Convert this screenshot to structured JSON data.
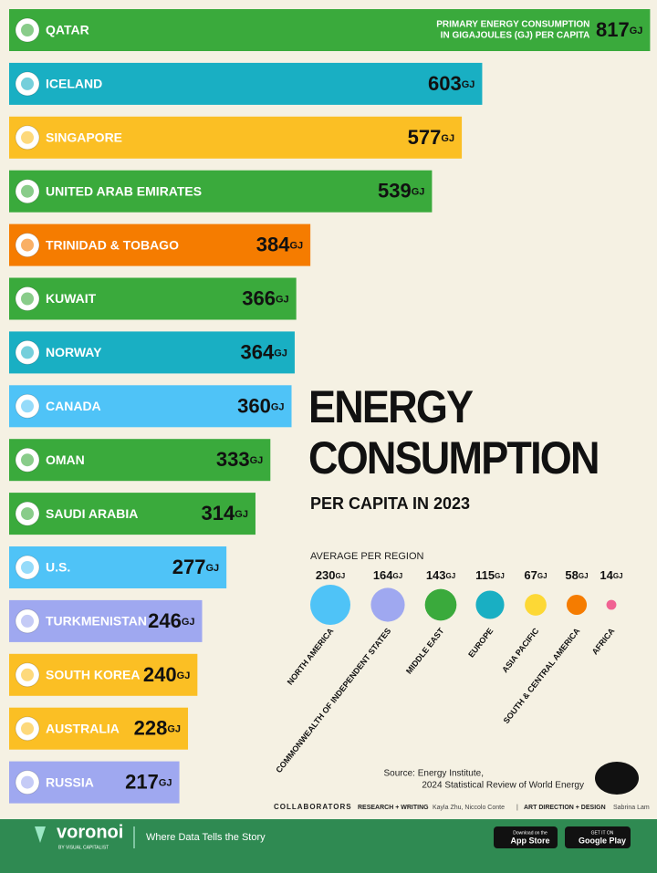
{
  "chart_data": [
    {
      "type": "bar",
      "orientation": "horizontal",
      "title": "ENERGY CONSUMPTION",
      "subtitle": "PER CAPITA IN 2023",
      "note": [
        "PRIMARY ENERGY CONSUMPTION",
        "IN GIGAJOULES (GJ) PER CAPITA"
      ],
      "unit": "GJ",
      "categories": [
        "QATAR",
        "ICELAND",
        "SINGAPORE",
        "UNITED ARAB EMIRATES",
        "TRINIDAD & TOBAGO",
        "KUWAIT",
        "NORWAY",
        "CANADA",
        "OMAN",
        "SAUDI ARABIA",
        "U.S.",
        "TURKMENISTAN",
        "SOUTH KOREA",
        "AUSTRALIA",
        "RUSSIA"
      ],
      "values": [
        817,
        603,
        577,
        539,
        384,
        366,
        364,
        360,
        333,
        314,
        277,
        246,
        240,
        228,
        217
      ],
      "colors": [
        "#3aaa3c",
        "#19afc3",
        "#fbbf24",
        "#3aaa3c",
        "#f57c00",
        "#3aaa3c",
        "#19afc3",
        "#4fc3f7",
        "#3aaa3c",
        "#3aaa3c",
        "#4fc3f7",
        "#9fa8f0",
        "#fbbf24",
        "#fbbf24",
        "#9fa8f0"
      ],
      "xlim": [
        0,
        820
      ]
    },
    {
      "type": "bubble",
      "title": "AVERAGE PER REGION",
      "unit": "GJ",
      "categories": [
        "NORTH AMERICA",
        "COMMONWEALTH OF INDEPENDENT STATES",
        "MIDDLE EAST",
        "EUROPE",
        "ASIA PACIFIC",
        "SOUTH & CENTRAL AMERICA",
        "AFRICA"
      ],
      "values": [
        230,
        164,
        143,
        115,
        67,
        58,
        14
      ],
      "colors": [
        "#4fc3f7",
        "#9fa8f0",
        "#3aaa3c",
        "#19afc3",
        "#fdd835",
        "#f57c00",
        "#f06292"
      ]
    }
  ],
  "source": [
    "Source: Energy Institute,",
    "2024 Statistical Review of World Energy"
  ],
  "credits": {
    "label": "COLLABORATORS",
    "research_role": "RESEARCH + WRITING",
    "research_names": "Kayla Zhu, Niccolo Conte",
    "design_role": "ART DIRECTION + DESIGN",
    "design_names": "Sabrina Lam"
  },
  "footer": {
    "brand": "voronoi",
    "brand_sub": "BY VISUAL CAPITALIST",
    "tagline": "Where Data Tells the Story",
    "app_store_top": "Download on the",
    "app_store": "App Store",
    "google_play_top": "GET IT ON",
    "google_play": "Google Play"
  }
}
